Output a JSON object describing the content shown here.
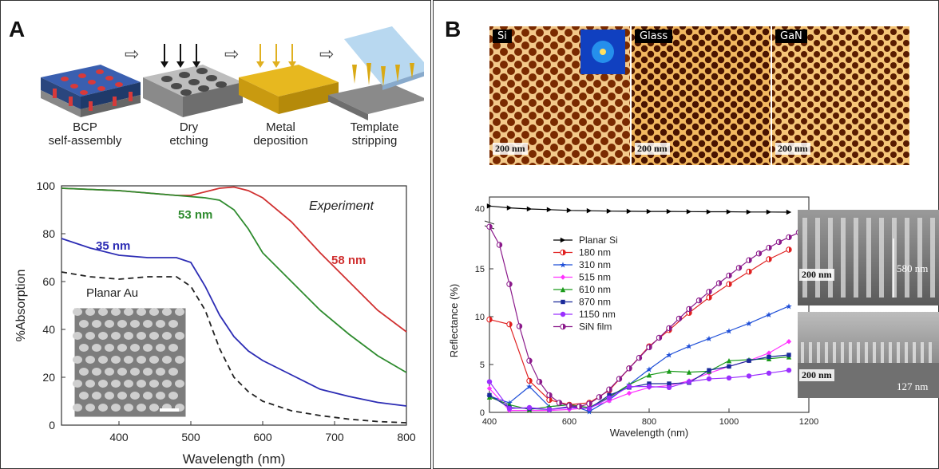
{
  "panelA": {
    "label": "A",
    "process": {
      "steps": [
        {
          "line1": "BCP",
          "line2": "self-assembly"
        },
        {
          "line1": "Dry",
          "line2": "etching"
        },
        {
          "line1": "Metal",
          "line2": "deposition"
        },
        {
          "line1": "Template",
          "line2": "stripping"
        }
      ]
    },
    "annotation_experiment": "Experiment",
    "inset_caption": "Planar Au"
  },
  "panelB": {
    "label": "B",
    "afm_tags": [
      "Si",
      "Glass",
      "GaN"
    ],
    "afm_scalebar": "200 nm",
    "sem_top": {
      "scalebar": "200 nm",
      "height": "580 nm"
    },
    "sem_bottom": {
      "scalebar": "200 nm",
      "height": "127 nm"
    }
  },
  "chart_data": [
    {
      "type": "line",
      "xlabel": "Wavelength (nm)",
      "ylabel": "%Absorption",
      "xlim": [
        320,
        800
      ],
      "ylim": [
        0,
        100
      ],
      "xticks": [
        "400",
        "500",
        "600",
        "700",
        "800"
      ],
      "yticks": [
        "0",
        "20",
        "40",
        "60",
        "80",
        "100"
      ],
      "annotations": [
        "Experiment"
      ],
      "series": [
        {
          "name": "58 nm",
          "color": "#d03030",
          "style": "solid",
          "x": [
            320,
            360,
            400,
            440,
            480,
            500,
            520,
            540,
            560,
            580,
            600,
            640,
            680,
            720,
            760,
            800
          ],
          "y": [
            99,
            98.5,
            98,
            97,
            96,
            96,
            97.5,
            99,
            99.5,
            98,
            95,
            85,
            72,
            60,
            48,
            39
          ]
        },
        {
          "name": "53 nm",
          "color": "#2e8b2e",
          "style": "solid",
          "x": [
            320,
            360,
            400,
            440,
            480,
            500,
            520,
            540,
            560,
            580,
            600,
            640,
            680,
            720,
            760,
            800
          ],
          "y": [
            99,
            98.5,
            98,
            97,
            96,
            95.5,
            95,
            94,
            90,
            82,
            72,
            60,
            48,
            38,
            29,
            22
          ]
        },
        {
          "name": "35 nm",
          "color": "#2c2cb4",
          "style": "solid",
          "x": [
            320,
            360,
            400,
            440,
            480,
            500,
            520,
            540,
            560,
            580,
            600,
            640,
            680,
            720,
            760,
            800
          ],
          "y": [
            78,
            74,
            71,
            70,
            70,
            68,
            58,
            46,
            37,
            31,
            27,
            21,
            15,
            12,
            9.5,
            8
          ]
        },
        {
          "name": "Planar Au",
          "color": "#222222",
          "style": "dashed",
          "x": [
            320,
            360,
            400,
            440,
            480,
            500,
            520,
            540,
            560,
            580,
            600,
            640,
            680,
            720,
            760,
            800
          ],
          "y": [
            64,
            62,
            61,
            62,
            62,
            58,
            48,
            32,
            20,
            14,
            10,
            6,
            4,
            2.5,
            1.5,
            1
          ]
        }
      ]
    },
    {
      "type": "line",
      "xlabel": "Wavelength (nm)",
      "ylabel": "Reflectance (%)",
      "xlim": [
        400,
        1200
      ],
      "ylim": [
        0,
        20
      ],
      "xticks": [
        "400",
        "600",
        "800",
        "1000",
        "1200"
      ],
      "yticks": [
        "0",
        "5",
        "10",
        "15"
      ],
      "axis_break_tick": "40",
      "series": [
        {
          "name": "Planar Si",
          "color": "#000000",
          "marker": "triangle-right",
          "broken": true,
          "x": [
            400,
            450,
            500,
            550,
            600,
            650,
            700,
            750,
            800,
            850,
            900,
            950,
            1000,
            1050,
            1100,
            1150
          ],
          "y": [
            40.7,
            40.2,
            39.9,
            39.7,
            39.5,
            39.4,
            39.3,
            39.25,
            39.2,
            39.2,
            39.15,
            39.1,
            39.1,
            39.05,
            39.05,
            39.0
          ]
        },
        {
          "name": "180 nm",
          "color": "#e02020",
          "marker": "half-circle",
          "x": [
            400,
            450,
            500,
            550,
            600,
            650,
            700,
            750,
            800,
            850,
            900,
            950,
            1000,
            1050,
            1100,
            1150
          ],
          "y": [
            9.7,
            9.2,
            3.3,
            1.3,
            0.8,
            1.0,
            2.3,
            4.6,
            6.9,
            8.6,
            10.4,
            12.0,
            13.4,
            14.7,
            16.0,
            17.0
          ]
        },
        {
          "name": "310 nm",
          "color": "#1f4fd8",
          "marker": "star",
          "x": [
            400,
            450,
            500,
            550,
            600,
            650,
            700,
            750,
            800,
            850,
            900,
            950,
            1000,
            1050,
            1100,
            1150
          ],
          "y": [
            1.7,
            1.0,
            2.7,
            0.6,
            0.8,
            0.1,
            1.3,
            2.9,
            4.5,
            6.0,
            6.9,
            7.7,
            8.5,
            9.3,
            10.2,
            11.1
          ]
        },
        {
          "name": "515 nm",
          "color": "#ff33ff",
          "marker": "diamond",
          "x": [
            400,
            450,
            500,
            550,
            600,
            650,
            700,
            750,
            800,
            850,
            900,
            950,
            1000,
            1050,
            1100,
            1150
          ],
          "y": [
            2.5,
            0.2,
            0.2,
            0.2,
            0.3,
            0.5,
            1.2,
            2.0,
            2.6,
            2.8,
            3.3,
            4.1,
            4.8,
            5.4,
            6.2,
            7.4
          ]
        },
        {
          "name": "610 nm",
          "color": "#1a9a1a",
          "marker": "triangle-up",
          "x": [
            400,
            450,
            500,
            550,
            600,
            650,
            700,
            750,
            800,
            850,
            900,
            950,
            1000,
            1050,
            1100,
            1150
          ],
          "y": [
            1.6,
            0.8,
            0.3,
            0.6,
            0.8,
            0.5,
            1.6,
            2.9,
            3.9,
            4.3,
            4.2,
            4.3,
            5.4,
            5.5,
            5.6,
            5.8
          ]
        },
        {
          "name": "870 nm",
          "color": "#1a2a9a",
          "marker": "square",
          "x": [
            400,
            450,
            500,
            550,
            600,
            650,
            700,
            750,
            800,
            850,
            900,
            950,
            1000,
            1050,
            1100,
            1150
          ],
          "y": [
            1.8,
            0.5,
            0.4,
            0.3,
            0.6,
            0.4,
            1.8,
            2.6,
            3.0,
            3.0,
            3.1,
            4.4,
            4.8,
            5.4,
            5.8,
            6.0
          ]
        },
        {
          "name": "1150 nm",
          "color": "#9b30ff",
          "marker": "circle",
          "x": [
            400,
            450,
            500,
            550,
            600,
            650,
            700,
            750,
            800,
            850,
            900,
            950,
            1000,
            1050,
            1100,
            1150
          ],
          "y": [
            3.2,
            0.4,
            0.5,
            0.3,
            0.5,
            0.4,
            1.5,
            2.7,
            2.7,
            2.6,
            3.2,
            3.5,
            3.6,
            3.8,
            4.1,
            4.4
          ]
        },
        {
          "name": "SiN film",
          "color": "#8b1a8b",
          "marker": "half-circle",
          "x": [
            400,
            425,
            450,
            475,
            500,
            525,
            550,
            575,
            600,
            625,
            650,
            675,
            700,
            725,
            750,
            775,
            800,
            825,
            850,
            875,
            900,
            925,
            950,
            975,
            1000,
            1025,
            1050,
            1075,
            1100,
            1125,
            1150,
            1175
          ],
          "y": [
            19.4,
            17.5,
            13.4,
            9.0,
            5.4,
            3.2,
            1.8,
            1.0,
            0.7,
            0.6,
            0.9,
            1.6,
            2.4,
            3.5,
            4.6,
            5.7,
            6.8,
            7.8,
            8.8,
            9.8,
            10.8,
            11.7,
            12.6,
            13.5,
            14.3,
            15.1,
            15.9,
            16.6,
            17.2,
            17.8,
            18.3,
            18.8
          ]
        }
      ]
    }
  ]
}
